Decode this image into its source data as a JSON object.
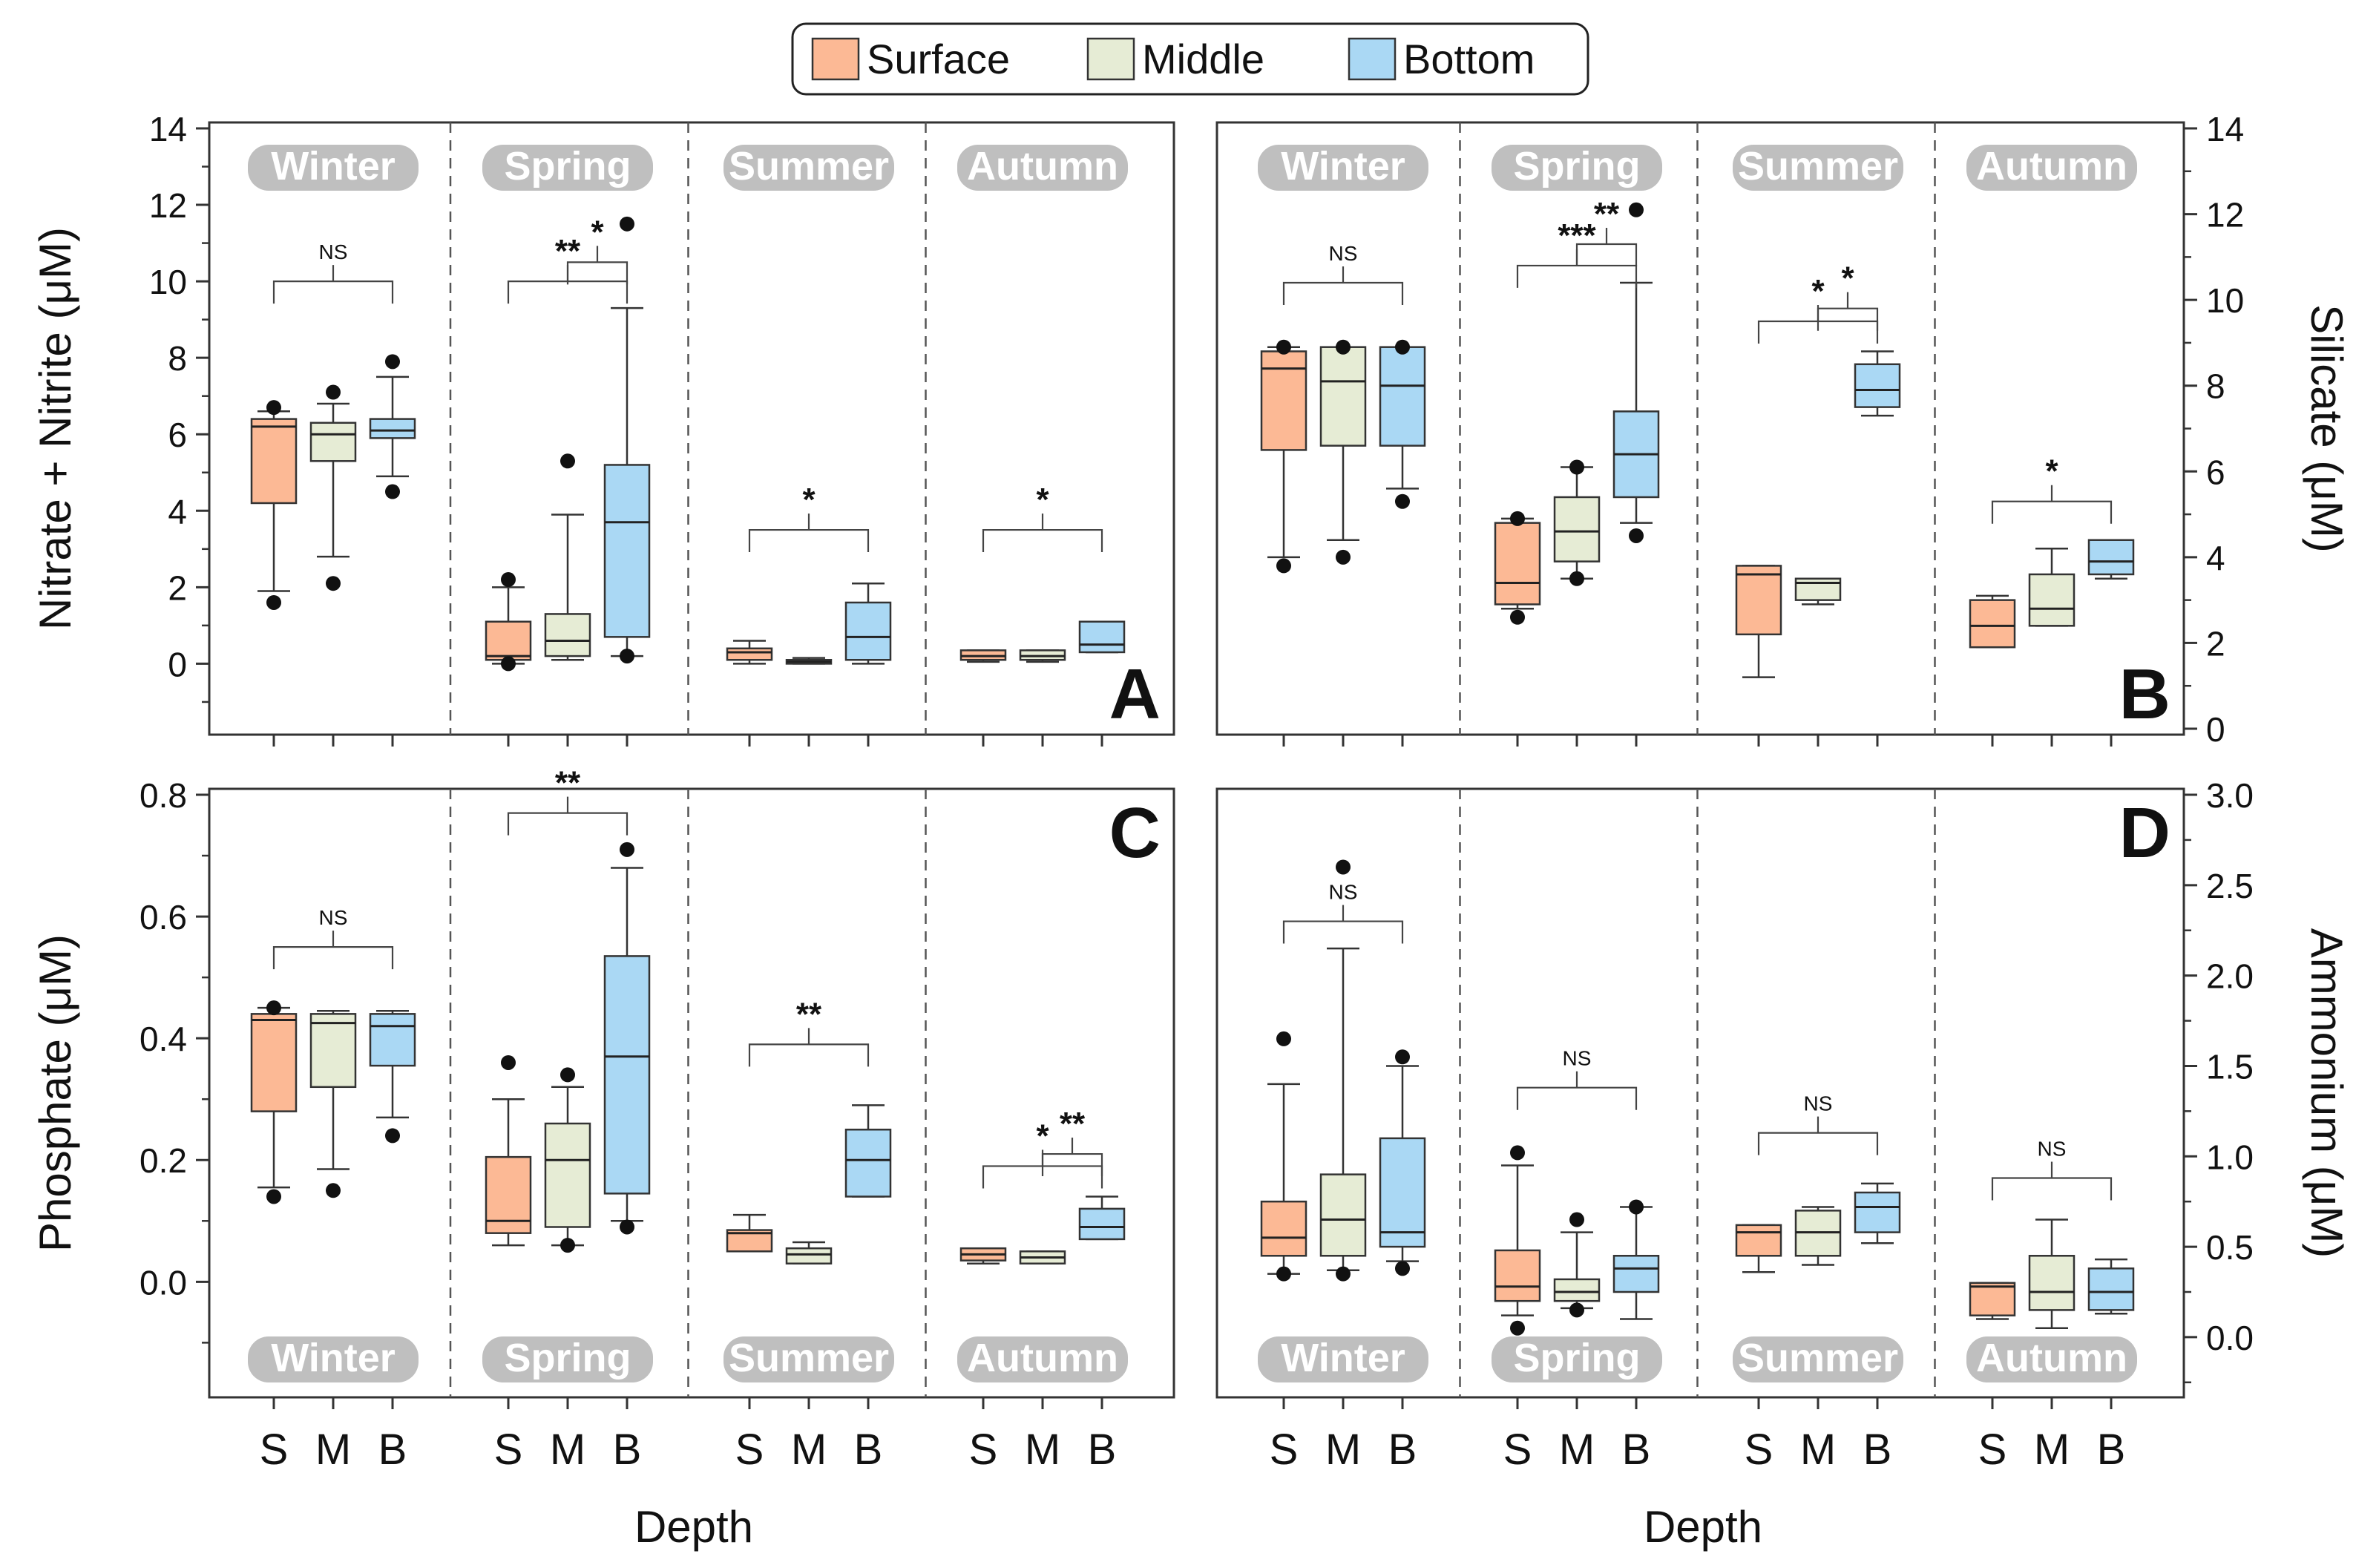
{
  "legend": {
    "items": [
      {
        "label": "Surface",
        "color": "#fcb995"
      },
      {
        "label": "Middle",
        "color": "#e6ecd5"
      },
      {
        "label": "Bottom",
        "color": "#aad8f4"
      }
    ]
  },
  "colors": {
    "surface": "#fcb995",
    "middle": "#e6ecd5",
    "bottom": "#aad8f4",
    "season_badge": "#bfbfbf",
    "axis": "#333333"
  },
  "x_axis": {
    "label": "Depth",
    "depth_labels": [
      "S",
      "M",
      "B"
    ]
  },
  "seasons": [
    "Winter",
    "Spring",
    "Summer",
    "Autumn"
  ],
  "chart_data": [
    {
      "type": "box",
      "panel_label": "A",
      "ylabel": "Nitrate + Nitrite (μM)",
      "ylim": [
        -1.7,
        14
      ],
      "yticks": [
        0,
        2,
        4,
        6,
        8,
        10,
        12,
        14
      ],
      "season_label_position": "top",
      "categories": [
        "S",
        "M",
        "B"
      ],
      "groups": [
        {
          "season": "Winter",
          "sig": "NS",
          "brackets": [
            {
              "from": 0,
              "to": 2,
              "label": "NS",
              "y": 10.0
            }
          ],
          "boxes": [
            {
              "q1": 4.2,
              "median": 6.2,
              "q3": 6.4,
              "whisker_low": 1.9,
              "whisker_high": 6.6,
              "outliers": [
                1.6,
                6.7
              ]
            },
            {
              "q1": 5.3,
              "median": 6.0,
              "q3": 6.3,
              "whisker_low": 2.8,
              "whisker_high": 6.8,
              "outliers": [
                2.1,
                7.1
              ]
            },
            {
              "q1": 5.9,
              "median": 6.1,
              "q3": 6.4,
              "whisker_low": 4.9,
              "whisker_high": 7.5,
              "outliers": [
                4.5,
                7.9
              ]
            }
          ]
        },
        {
          "season": "Spring",
          "brackets": [
            {
              "from": 0,
              "to": 2,
              "label": "**",
              "y": 10.0
            },
            {
              "from": 1,
              "to": 2,
              "label": "*",
              "y": 10.5
            }
          ],
          "boxes": [
            {
              "q1": 0.1,
              "median": 0.2,
              "q3": 1.1,
              "whisker_low": 0.0,
              "whisker_high": 2.0,
              "outliers": [
                0.0,
                2.2
              ]
            },
            {
              "q1": 0.2,
              "median": 0.6,
              "q3": 1.3,
              "whisker_low": 0.1,
              "whisker_high": 3.9,
              "outliers": [
                5.3
              ]
            },
            {
              "q1": 0.7,
              "median": 3.7,
              "q3": 5.2,
              "whisker_low": 0.2,
              "whisker_high": 9.3,
              "outliers": [
                0.2,
                11.5
              ]
            }
          ]
        },
        {
          "season": "Summer",
          "brackets": [
            {
              "from": 0,
              "to": 2,
              "label": "*",
              "y": 3.5
            }
          ],
          "boxes": [
            {
              "q1": 0.1,
              "median": 0.3,
              "q3": 0.4,
              "whisker_low": 0.0,
              "whisker_high": 0.6,
              "outliers": []
            },
            {
              "q1": 0.0,
              "median": 0.05,
              "q3": 0.1,
              "whisker_low": 0.0,
              "whisker_high": 0.15,
              "outliers": []
            },
            {
              "q1": 0.1,
              "median": 0.7,
              "q3": 1.6,
              "whisker_low": 0.0,
              "whisker_high": 2.1,
              "outliers": []
            }
          ]
        },
        {
          "season": "Autumn",
          "brackets": [
            {
              "from": 0,
              "to": 2,
              "label": "*",
              "y": 3.5
            }
          ],
          "boxes": [
            {
              "q1": 0.1,
              "median": 0.2,
              "q3": 0.35,
              "whisker_low": 0.05,
              "whisker_high": 0.35,
              "outliers": []
            },
            {
              "q1": 0.1,
              "median": 0.2,
              "q3": 0.35,
              "whisker_low": 0.05,
              "whisker_high": 0.35,
              "outliers": []
            },
            {
              "q1": 0.3,
              "median": 0.5,
              "q3": 1.1,
              "whisker_low": 0.3,
              "whisker_high": 1.1,
              "outliers": []
            }
          ]
        }
      ]
    },
    {
      "type": "box",
      "panel_label": "B",
      "ylabel": "Silicate (μM)",
      "ylim": [
        0,
        14
      ],
      "yticks": [
        0,
        2,
        4,
        6,
        8,
        10,
        12,
        14
      ],
      "season_label_position": "top",
      "categories": [
        "S",
        "M",
        "B"
      ],
      "groups": [
        {
          "season": "Winter",
          "brackets": [
            {
              "from": 0,
              "to": 2,
              "label": "NS",
              "y": 10.4
            }
          ],
          "boxes": [
            {
              "q1": 6.5,
              "median": 8.4,
              "q3": 8.8,
              "whisker_low": 4.0,
              "whisker_high": 8.9,
              "outliers": [
                3.8,
                8.9
              ]
            },
            {
              "q1": 6.6,
              "median": 8.1,
              "q3": 8.9,
              "whisker_low": 4.4,
              "whisker_high": 8.9,
              "outliers": [
                4.0,
                8.9
              ]
            },
            {
              "q1": 6.6,
              "median": 8.0,
              "q3": 8.9,
              "whisker_low": 5.6,
              "whisker_high": 8.9,
              "outliers": [
                5.3,
                8.9
              ]
            }
          ]
        },
        {
          "season": "Spring",
          "brackets": [
            {
              "from": 0,
              "to": 2,
              "label": "***",
              "y": 10.8
            },
            {
              "from": 1,
              "to": 2,
              "label": "**",
              "y": 11.3
            }
          ],
          "boxes": [
            {
              "q1": 2.9,
              "median": 3.4,
              "q3": 4.8,
              "whisker_low": 2.8,
              "whisker_high": 4.9,
              "outliers": [
                2.6,
                4.9
              ]
            },
            {
              "q1": 3.9,
              "median": 4.6,
              "q3": 5.4,
              "whisker_low": 3.5,
              "whisker_high": 6.1,
              "outliers": [
                3.5,
                6.1
              ]
            },
            {
              "q1": 5.4,
              "median": 6.4,
              "q3": 7.4,
              "whisker_low": 4.8,
              "whisker_high": 10.4,
              "outliers": [
                4.5,
                12.1
              ]
            }
          ]
        },
        {
          "season": "Summer",
          "brackets": [
            {
              "from": 0,
              "to": 2,
              "label": "*",
              "y": 9.5
            },
            {
              "from": 1,
              "to": 2,
              "label": "*",
              "y": 9.8
            }
          ],
          "boxes": [
            {
              "q1": 2.2,
              "median": 3.6,
              "q3": 3.8,
              "whisker_low": 1.2,
              "whisker_high": 3.8,
              "outliers": []
            },
            {
              "q1": 3.0,
              "median": 3.4,
              "q3": 3.5,
              "whisker_low": 2.9,
              "whisker_high": 3.5,
              "outliers": []
            },
            {
              "q1": 7.5,
              "median": 7.9,
              "q3": 8.5,
              "whisker_low": 7.3,
              "whisker_high": 8.8,
              "outliers": []
            }
          ]
        },
        {
          "season": "Autumn",
          "brackets": [
            {
              "from": 0,
              "to": 2,
              "label": "*",
              "y": 5.3
            }
          ],
          "boxes": [
            {
              "q1": 1.9,
              "median": 2.4,
              "q3": 3.0,
              "whisker_low": 1.9,
              "whisker_high": 3.1,
              "outliers": []
            },
            {
              "q1": 2.4,
              "median": 2.8,
              "q3": 3.6,
              "whisker_low": 2.4,
              "whisker_high": 4.2,
              "outliers": []
            },
            {
              "q1": 3.6,
              "median": 3.9,
              "q3": 4.4,
              "whisker_low": 3.5,
              "whisker_high": 4.4,
              "outliers": []
            }
          ]
        }
      ]
    },
    {
      "type": "box",
      "panel_label": "C",
      "ylabel": "Phosphate (μM)",
      "ylim": [
        -0.18,
        0.8
      ],
      "yticks": [
        0.0,
        0.2,
        0.4,
        0.6,
        0.8
      ],
      "season_label_position": "bottom",
      "categories": [
        "S",
        "M",
        "B"
      ],
      "groups": [
        {
          "season": "Winter",
          "brackets": [
            {
              "from": 0,
              "to": 2,
              "label": "NS",
              "y": 0.55
            }
          ],
          "boxes": [
            {
              "q1": 0.28,
              "median": 0.43,
              "q3": 0.44,
              "whisker_low": 0.155,
              "whisker_high": 0.45,
              "outliers": [
                0.14,
                0.45
              ]
            },
            {
              "q1": 0.32,
              "median": 0.425,
              "q3": 0.44,
              "whisker_low": 0.185,
              "whisker_high": 0.445,
              "outliers": [
                0.15
              ]
            },
            {
              "q1": 0.355,
              "median": 0.42,
              "q3": 0.44,
              "whisker_low": 0.27,
              "whisker_high": 0.445,
              "outliers": [
                0.24
              ]
            }
          ]
        },
        {
          "season": "Spring",
          "brackets": [
            {
              "from": 0,
              "to": 2,
              "label": "**",
              "y": 0.77
            }
          ],
          "boxes": [
            {
              "q1": 0.08,
              "median": 0.1,
              "q3": 0.205,
              "whisker_low": 0.06,
              "whisker_high": 0.3,
              "outliers": [
                0.36
              ]
            },
            {
              "q1": 0.09,
              "median": 0.2,
              "q3": 0.26,
              "whisker_low": 0.06,
              "whisker_high": 0.32,
              "outliers": [
                0.06,
                0.34
              ]
            },
            {
              "q1": 0.145,
              "median": 0.37,
              "q3": 0.535,
              "whisker_low": 0.1,
              "whisker_high": 0.68,
              "outliers": [
                0.09,
                0.71
              ]
            }
          ]
        },
        {
          "season": "Summer",
          "brackets": [
            {
              "from": 0,
              "to": 2,
              "label": "**",
              "y": 0.39
            }
          ],
          "boxes": [
            {
              "q1": 0.05,
              "median": 0.08,
              "q3": 0.085,
              "whisker_low": 0.05,
              "whisker_high": 0.11,
              "outliers": []
            },
            {
              "q1": 0.03,
              "median": 0.045,
              "q3": 0.055,
              "whisker_low": 0.03,
              "whisker_high": 0.065,
              "outliers": []
            },
            {
              "q1": 0.14,
              "median": 0.2,
              "q3": 0.25,
              "whisker_low": 0.14,
              "whisker_high": 0.29,
              "outliers": []
            }
          ]
        },
        {
          "season": "Autumn",
          "brackets": [
            {
              "from": 0,
              "to": 2,
              "label": "*",
              "y": 0.19
            },
            {
              "from": 1,
              "to": 2,
              "label": "**",
              "y": 0.21
            }
          ],
          "boxes": [
            {
              "q1": 0.035,
              "median": 0.045,
              "q3": 0.055,
              "whisker_low": 0.03,
              "whisker_high": 0.055,
              "outliers": []
            },
            {
              "q1": 0.03,
              "median": 0.04,
              "q3": 0.05,
              "whisker_low": 0.03,
              "whisker_high": 0.05,
              "outliers": []
            },
            {
              "q1": 0.07,
              "median": 0.09,
              "q3": 0.12,
              "whisker_low": 0.07,
              "whisker_high": 0.14,
              "outliers": []
            }
          ]
        }
      ]
    },
    {
      "type": "box",
      "panel_label": "D",
      "ylabel": "Ammonium (μM)",
      "ylim": [
        -0.3,
        3.0
      ],
      "yticks": [
        0.0,
        0.5,
        1.0,
        1.5,
        2.0,
        2.5,
        3.0
      ],
      "season_label_position": "bottom",
      "categories": [
        "S",
        "M",
        "B"
      ],
      "groups": [
        {
          "season": "Winter",
          "brackets": [
            {
              "from": 0,
              "to": 2,
              "label": "NS",
              "y": 2.3
            }
          ],
          "boxes": [
            {
              "q1": 0.45,
              "median": 0.55,
              "q3": 0.75,
              "whisker_low": 0.35,
              "whisker_high": 1.4,
              "outliers": [
                0.35,
                1.65
              ]
            },
            {
              "q1": 0.45,
              "median": 0.65,
              "q3": 0.9,
              "whisker_low": 0.37,
              "whisker_high": 2.15,
              "outliers": [
                0.35,
                2.6
              ]
            },
            {
              "q1": 0.5,
              "median": 0.58,
              "q3": 1.1,
              "whisker_low": 0.42,
              "whisker_high": 1.5,
              "outliers": [
                0.38,
                1.55
              ]
            }
          ]
        },
        {
          "season": "Spring",
          "brackets": [
            {
              "from": 0,
              "to": 2,
              "label": "NS",
              "y": 1.38
            }
          ],
          "boxes": [
            {
              "q1": 0.2,
              "median": 0.28,
              "q3": 0.48,
              "whisker_low": 0.12,
              "whisker_high": 0.95,
              "outliers": [
                0.05,
                1.02
              ]
            },
            {
              "q1": 0.2,
              "median": 0.25,
              "q3": 0.32,
              "whisker_low": 0.16,
              "whisker_high": 0.58,
              "outliers": [
                0.15,
                0.65
              ]
            },
            {
              "q1": 0.25,
              "median": 0.38,
              "q3": 0.45,
              "whisker_low": 0.1,
              "whisker_high": 0.72,
              "outliers": [
                0.72
              ]
            }
          ]
        },
        {
          "season": "Summer",
          "brackets": [
            {
              "from": 0,
              "to": 2,
              "label": "NS",
              "y": 1.13
            }
          ],
          "boxes": [
            {
              "q1": 0.45,
              "median": 0.58,
              "q3": 0.62,
              "whisker_low": 0.36,
              "whisker_high": 0.62,
              "outliers": []
            },
            {
              "q1": 0.45,
              "median": 0.58,
              "q3": 0.7,
              "whisker_low": 0.4,
              "whisker_high": 0.72,
              "outliers": []
            },
            {
              "q1": 0.58,
              "median": 0.72,
              "q3": 0.8,
              "whisker_low": 0.52,
              "whisker_high": 0.85,
              "outliers": []
            }
          ]
        },
        {
          "season": "Autumn",
          "brackets": [
            {
              "from": 0,
              "to": 2,
              "label": "NS",
              "y": 0.88
            }
          ],
          "boxes": [
            {
              "q1": 0.12,
              "median": 0.28,
              "q3": 0.3,
              "whisker_low": 0.1,
              "whisker_high": 0.3,
              "outliers": []
            },
            {
              "q1": 0.15,
              "median": 0.25,
              "q3": 0.45,
              "whisker_low": 0.05,
              "whisker_high": 0.65,
              "outliers": []
            },
            {
              "q1": 0.15,
              "median": 0.25,
              "q3": 0.38,
              "whisker_low": 0.13,
              "whisker_high": 0.43,
              "outliers": []
            }
          ]
        }
      ]
    }
  ]
}
